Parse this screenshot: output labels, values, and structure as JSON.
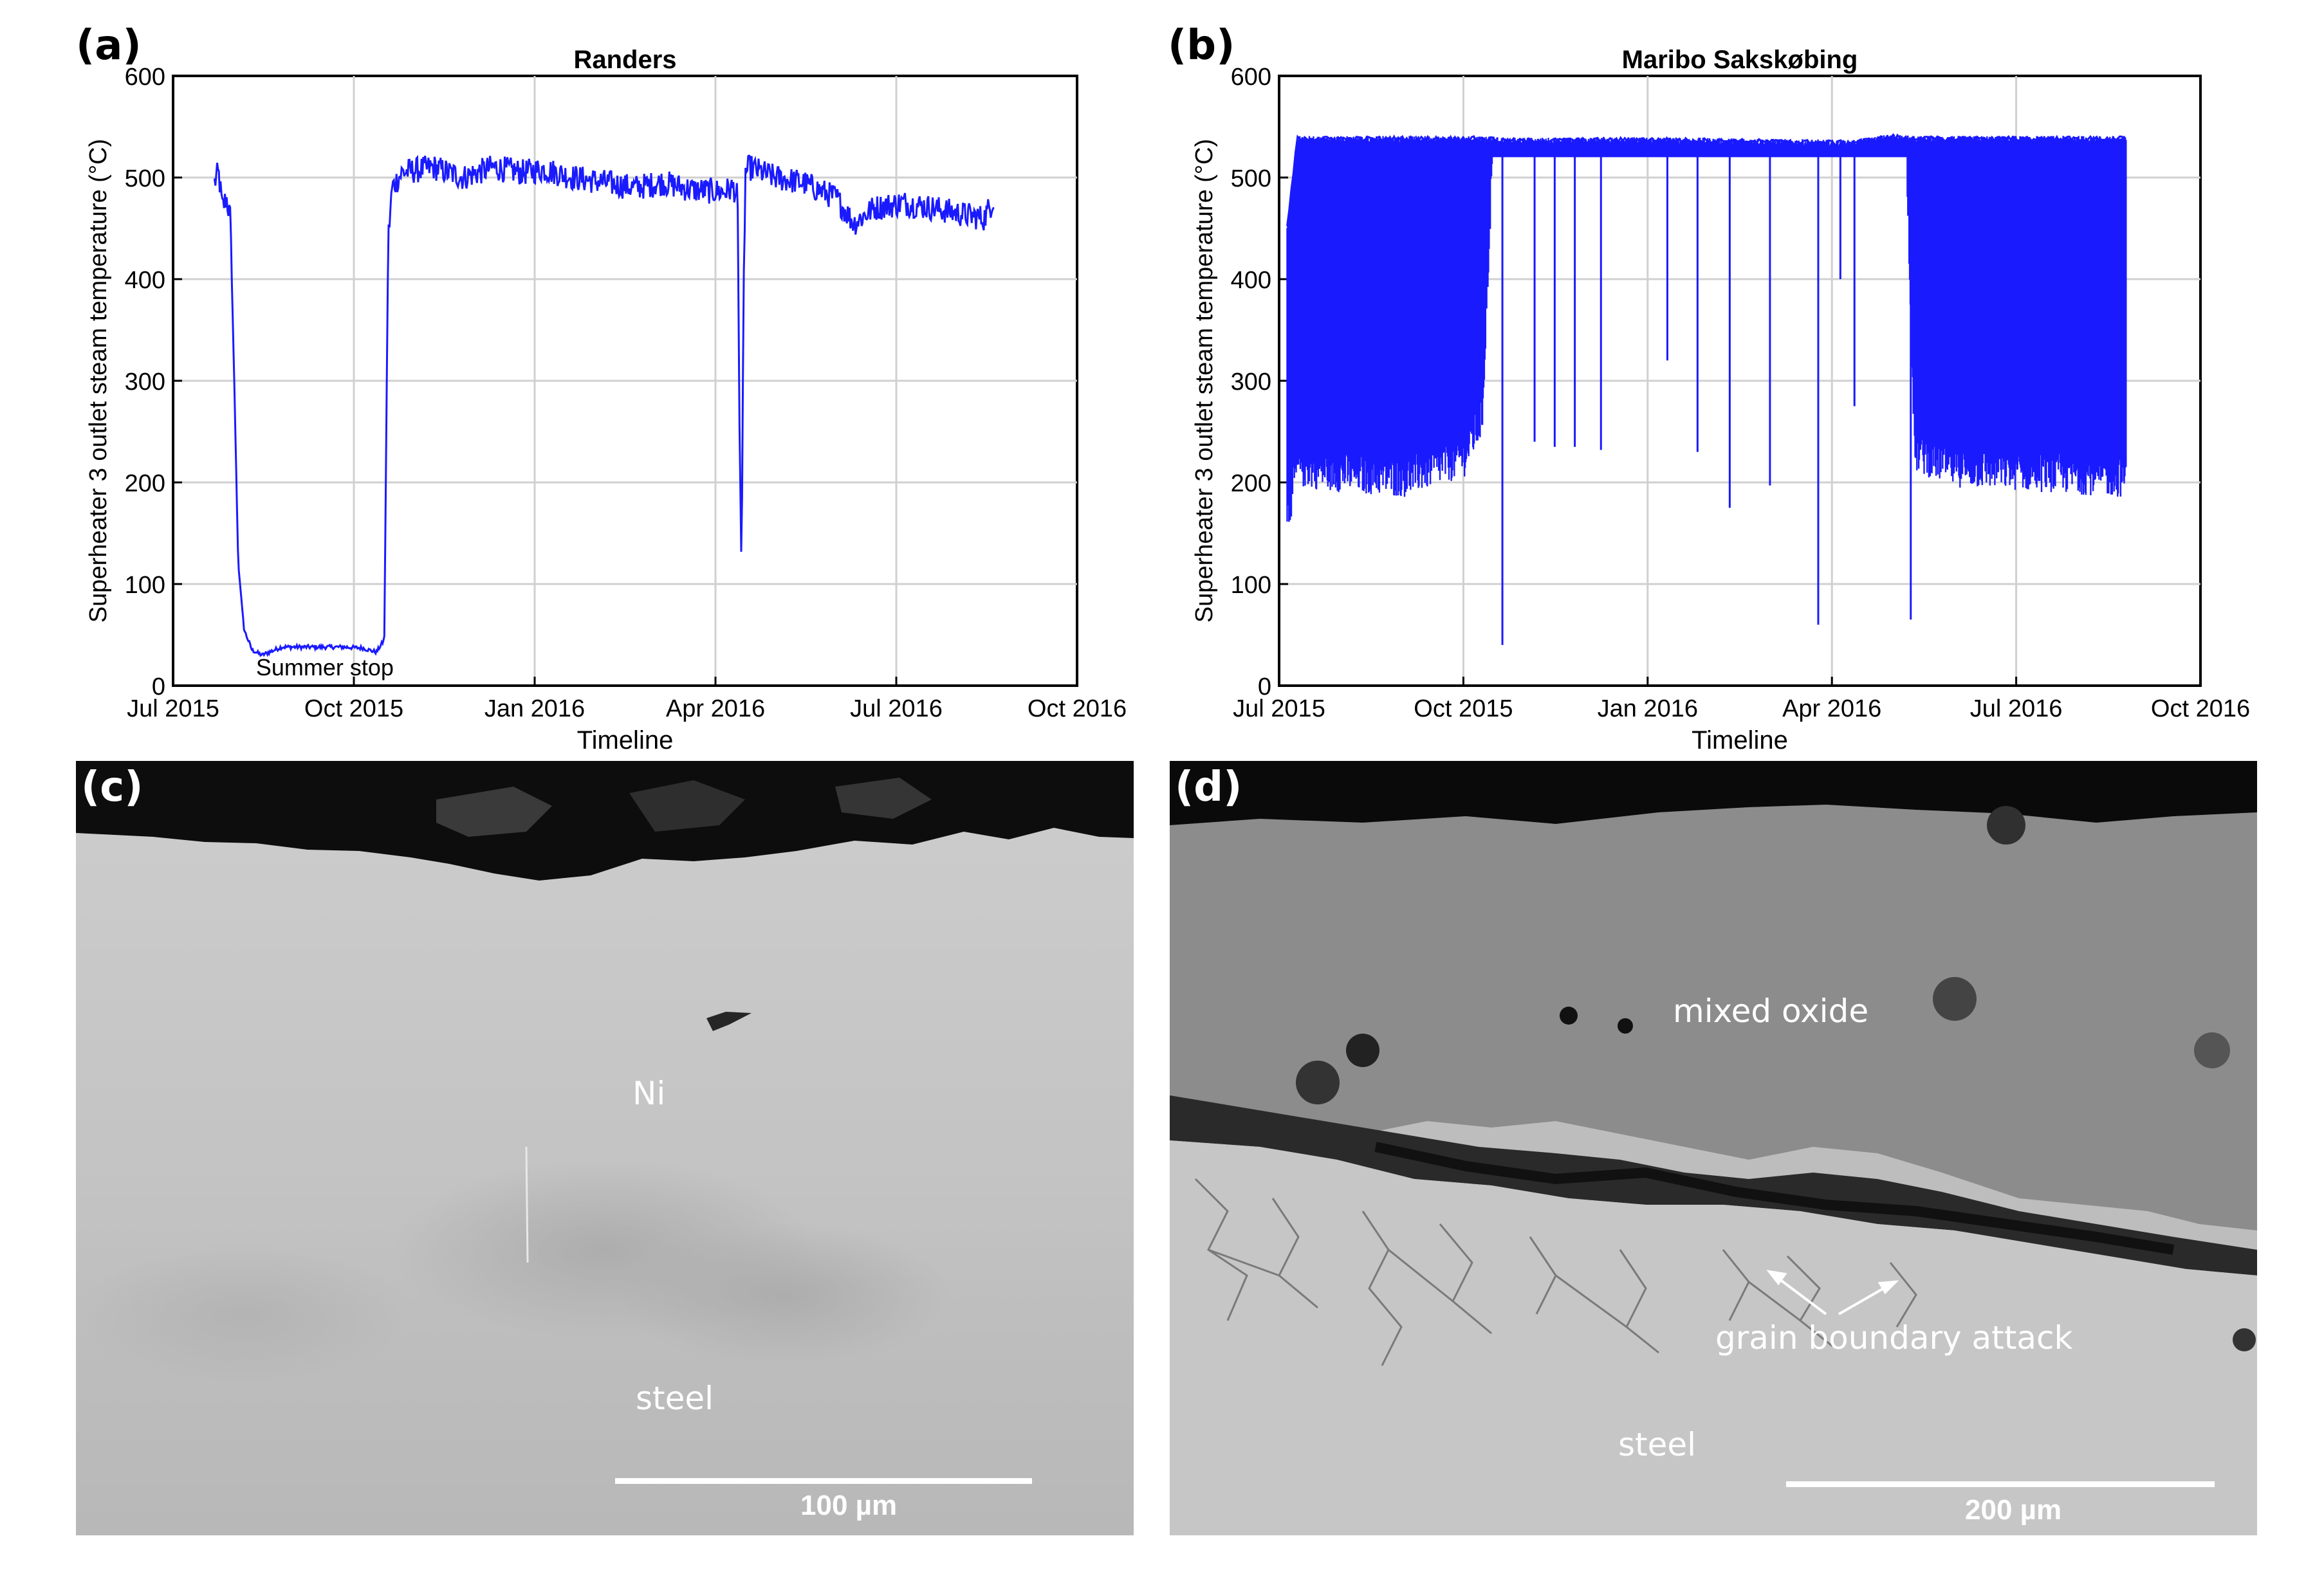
{
  "figure": {
    "panel_labels": [
      "(a)",
      "(b)",
      "(c)",
      "(d)"
    ]
  },
  "chart_data": [
    {
      "type": "line",
      "title": "Randers",
      "xlabel": "Timeline",
      "ylabel": "Superheater 3 outlet steam temperature (°C)",
      "x_ticks": [
        "Jul 2015",
        "Oct 2015",
        "Jan 2016",
        "Apr 2016",
        "Jul 2016",
        "Oct 2016"
      ],
      "x_range": [
        "2015-07-01",
        "2016-10-01"
      ],
      "ylim": [
        0,
        600
      ],
      "y_ticks": [
        0,
        100,
        200,
        300,
        400,
        500,
        600
      ],
      "grid": true,
      "color": "#1a1aff",
      "annotation": "Summer stop",
      "series": [
        {
          "x": [
            "2015-07-22",
            "2015-07-24",
            "2015-07-26",
            "2015-07-28",
            "2015-07-30",
            "2015-08-01",
            "2015-08-03",
            "2015-08-06",
            "2015-08-10",
            "2015-08-15",
            "2015-08-25",
            "2015-09-10",
            "2015-09-25",
            "2015-10-05",
            "2015-10-12",
            "2015-10-16",
            "2015-10-18",
            "2015-10-20",
            "2015-10-25",
            "2015-11-10",
            "2015-11-25",
            "2015-12-10",
            "2015-12-25",
            "2016-01-05",
            "2016-01-20",
            "2016-02-05",
            "2016-02-20",
            "2016-03-05",
            "2016-03-20",
            "2016-04-05",
            "2016-04-10",
            "2016-04-12",
            "2016-04-13",
            "2016-04-14",
            "2016-04-15",
            "2016-04-16",
            "2016-04-18",
            "2016-05-01",
            "2016-05-15",
            "2016-06-01",
            "2016-06-10",
            "2016-06-20",
            "2016-07-05",
            "2016-07-20",
            "2016-08-01",
            "2016-08-15",
            "2016-08-20"
          ],
          "values": [
            495,
            505,
            470,
            480,
            460,
            300,
            120,
            55,
            35,
            30,
            38,
            38,
            38,
            37,
            33,
            45,
            440,
            490,
            505,
            510,
            500,
            510,
            505,
            508,
            500,
            495,
            490,
            495,
            488,
            486,
            490,
            480,
            250,
            110,
            380,
            505,
            510,
            500,
            495,
            480,
            455,
            470,
            475,
            470,
            465,
            460,
            480
          ]
        }
      ]
    },
    {
      "type": "line",
      "title": "Maribo Sakskøbing",
      "xlabel": "Timeline",
      "ylabel": "Superheater 3 outlet steam temperature (°C)",
      "x_ticks": [
        "Jul 2015",
        "Oct 2015",
        "Jan 2016",
        "Apr 2016",
        "Jul 2016",
        "Oct 2016"
      ],
      "x_range": [
        "2015-07-01",
        "2016-10-01"
      ],
      "ylim": [
        0,
        600
      ],
      "y_ticks": [
        0,
        100,
        200,
        300,
        400,
        500,
        600
      ],
      "grid": true,
      "color": "#1a1aff",
      "series": [
        {
          "name": "upper envelope",
          "x": [
            "2015-07-05",
            "2015-07-10",
            "2015-10-15",
            "2015-10-20",
            "2016-01-01",
            "2016-04-10",
            "2016-05-01",
            "2016-05-10",
            "2016-08-25"
          ],
          "values": [
            450,
            538,
            538,
            536,
            537,
            534,
            540,
            538,
            538
          ]
        },
        {
          "name": "lower envelope",
          "x": [
            "2015-07-05",
            "2015-07-10",
            "2015-08-01",
            "2015-09-01",
            "2015-10-01",
            "2015-10-10",
            "2015-10-15",
            "2016-05-08",
            "2016-05-12",
            "2016-06-01",
            "2016-07-01",
            "2016-08-25"
          ],
          "values": [
            165,
            215,
            210,
            205,
            225,
            265,
            520,
            520,
            230,
            215,
            212,
            205
          ]
        },
        {
          "name": "dips",
          "x": [
            "2015-10-20",
            "2015-11-05",
            "2015-11-15",
            "2015-11-25",
            "2015-12-08",
            "2016-01-10",
            "2016-01-25",
            "2016-02-10",
            "2016-03-01",
            "2016-03-25",
            "2016-04-05",
            "2016-04-12",
            "2016-05-10"
          ],
          "values": [
            40,
            240,
            235,
            235,
            232,
            320,
            230,
            175,
            197,
            60,
            400,
            275,
            65
          ]
        }
      ]
    }
  ],
  "micrographs": {
    "c": {
      "labels": [
        "Ni",
        "steel"
      ],
      "scale_label": "100 µm"
    },
    "d": {
      "labels": [
        "mixed oxide",
        "grain boundary attack",
        "steel"
      ],
      "scale_label": "200 µm"
    }
  }
}
